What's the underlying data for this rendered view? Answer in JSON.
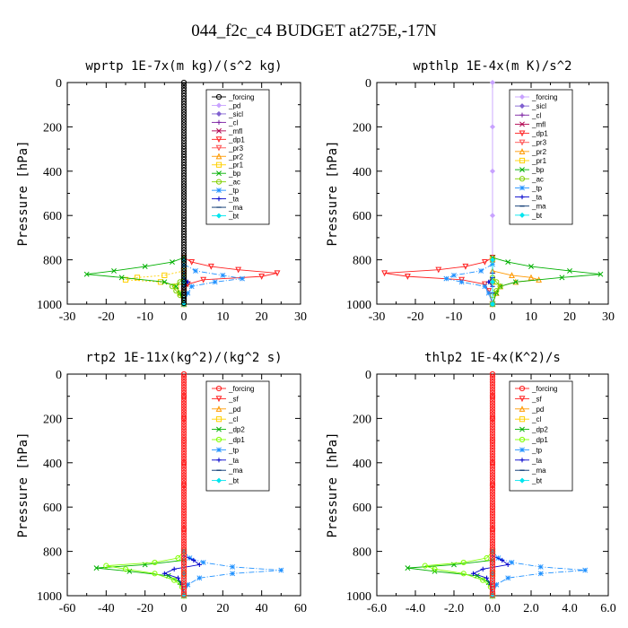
{
  "figure": {
    "title": "044_f2c_c4  BUDGET at275E,-17N"
  },
  "chart_data": [
    {
      "type": "line",
      "title": "wprtp  1E-7x(m kg)/(s^2 kg)",
      "ylabel": "Pressure [hPa]",
      "xlim": [
        -30,
        30
      ],
      "ylim": [
        1000,
        0
      ],
      "xticks": [
        "-30",
        "-20",
        "-10",
        "0",
        "10",
        "20",
        "30"
      ],
      "yticks": [
        "0",
        "200",
        "400",
        "600",
        "800",
        "1000"
      ],
      "legend_position": "top-right",
      "series": [
        {
          "name": "_forcing",
          "color": "#000000",
          "marker": "o-open",
          "y": [
            800,
            840,
            860,
            880,
            900,
            920,
            940,
            960,
            980,
            1000
          ],
          "x": [
            0,
            0,
            0,
            0,
            0,
            0,
            0,
            0,
            0,
            0
          ]
        },
        {
          "name": "_pd",
          "color": "#c8a2ff",
          "marker": "diamond",
          "y": [
            800,
            860,
            900,
            950,
            1000
          ],
          "x": [
            0,
            0,
            0,
            0,
            0
          ]
        },
        {
          "name": "_sicl",
          "color": "#8060d0",
          "marker": "diamond",
          "y": [
            800,
            860,
            900,
            950,
            1000
          ],
          "x": [
            0,
            0,
            0,
            0,
            0
          ]
        },
        {
          "name": "_cl",
          "color": "#7a1fa2",
          "marker": "plus",
          "y": [
            800,
            860,
            900,
            950,
            1000
          ],
          "x": [
            0,
            0,
            0,
            0,
            0
          ]
        },
        {
          "name": "_mfl",
          "color": "#b0004e",
          "marker": "cross",
          "y": [
            800,
            860,
            900,
            950,
            1000
          ],
          "x": [
            0,
            0,
            0,
            0,
            0
          ]
        },
        {
          "name": "_dp1",
          "color": "#ff2020",
          "marker": "triangle-down",
          "y": [
            790,
            810,
            830,
            845,
            860,
            875,
            890,
            910,
            940,
            1000
          ],
          "x": [
            0,
            2,
            7,
            14,
            24,
            20,
            5,
            1,
            0,
            0
          ]
        },
        {
          "name": "_pr3",
          "color": "#ff5050",
          "marker": "triangle-down",
          "y": [
            800,
            860,
            900,
            950,
            1000
          ],
          "x": [
            0,
            0,
            0,
            0,
            0
          ]
        },
        {
          "name": "_pr2",
          "color": "#ff9900",
          "marker": "triangle-up",
          "y": [
            800,
            860,
            900,
            950,
            1000
          ],
          "x": [
            0,
            0,
            0,
            0,
            0
          ]
        },
        {
          "name": "_pr1",
          "color": "#ffd000",
          "marker": "square",
          "y": [
            850,
            870,
            880,
            890,
            900,
            920,
            950,
            1000
          ],
          "x": [
            0,
            -5,
            -12,
            -15,
            -6,
            -2,
            -1,
            0
          ]
        },
        {
          "name": "_bp",
          "color": "#00b000",
          "marker": "cross",
          "y": [
            790,
            810,
            830,
            850,
            865,
            880,
            900,
            920,
            950,
            1000
          ],
          "x": [
            0,
            -3,
            -10,
            -18,
            -25,
            -16,
            -5,
            -2,
            -1,
            0
          ]
        },
        {
          "name": "_ac",
          "color": "#80d000",
          "marker": "o-open",
          "y": [
            880,
            900,
            920,
            940,
            960,
            1000
          ],
          "x": [
            0,
            -1,
            -3,
            -2,
            -1,
            0
          ]
        },
        {
          "name": "_tp",
          "color": "#1e90ff",
          "marker": "star",
          "y": [
            820,
            850,
            870,
            885,
            900,
            920,
            950,
            1000
          ],
          "x": [
            0,
            3,
            10,
            15,
            8,
            2,
            1,
            0
          ]
        },
        {
          "name": "_ta",
          "color": "#0000cc",
          "marker": "plus",
          "y": [
            860,
            880,
            900,
            920,
            950,
            1000
          ],
          "x": [
            0,
            0,
            1,
            0,
            0,
            0
          ]
        },
        {
          "name": "_ma",
          "color": "#002f6c",
          "marker": "dash",
          "y": [
            800,
            900,
            1000
          ],
          "x": [
            0,
            0,
            0
          ]
        },
        {
          "name": "_bt",
          "color": "#00e5ee",
          "marker": "diamond",
          "y": [
            800,
            900,
            1000
          ],
          "x": [
            0,
            0,
            0
          ]
        }
      ]
    },
    {
      "type": "line",
      "title": "wpthlp  1E-4x(m K)/s^2",
      "ylabel": "Pressure [hPa]",
      "xlim": [
        -30,
        30
      ],
      "ylim": [
        1000,
        0
      ],
      "xticks": [
        "-30",
        "-20",
        "-10",
        "0",
        "10",
        "20",
        "30"
      ],
      "yticks": [
        "0",
        "200",
        "400",
        "600",
        "800",
        "1000"
      ],
      "legend_position": "top-right",
      "series": [
        {
          "name": "_forcing",
          "color": "#c8a2ff",
          "marker": "diamond",
          "y": [
            0,
            200,
            400,
            600,
            800,
            900,
            1000
          ],
          "x": [
            0,
            0,
            0,
            0,
            0,
            0,
            0
          ]
        },
        {
          "name": "_sicl",
          "color": "#8060d0",
          "marker": "diamond",
          "y": [
            800,
            900,
            1000
          ],
          "x": [
            0,
            0,
            0
          ]
        },
        {
          "name": "_cl",
          "color": "#7a1fa2",
          "marker": "plus",
          "y": [
            800,
            900,
            1000
          ],
          "x": [
            0,
            0,
            0
          ]
        },
        {
          "name": "_mfl",
          "color": "#b0004e",
          "marker": "cross",
          "y": [
            800,
            900,
            1000
          ],
          "x": [
            0,
            0,
            0
          ]
        },
        {
          "name": "_dp1",
          "color": "#ff2020",
          "marker": "triangle-down",
          "y": [
            790,
            810,
            830,
            845,
            860,
            875,
            890,
            910,
            940,
            1000
          ],
          "x": [
            0,
            -2,
            -7,
            -14,
            -28,
            -22,
            -8,
            -2,
            -1,
            0
          ]
        },
        {
          "name": "_pr3",
          "color": "#ff5050",
          "marker": "triangle-down",
          "y": [
            800,
            900,
            1000
          ],
          "x": [
            0,
            0,
            0
          ]
        },
        {
          "name": "_pr2",
          "color": "#ff9900",
          "marker": "triangle-up",
          "y": [
            850,
            870,
            880,
            890,
            900,
            920,
            950,
            1000
          ],
          "x": [
            0,
            5,
            10,
            12,
            6,
            2,
            1,
            0
          ]
        },
        {
          "name": "_pr1",
          "color": "#ffd000",
          "marker": "square",
          "y": [
            800,
            900,
            1000
          ],
          "x": [
            0,
            0,
            0
          ]
        },
        {
          "name": "_bp",
          "color": "#00b000",
          "marker": "cross",
          "y": [
            790,
            810,
            830,
            850,
            865,
            880,
            900,
            920,
            950,
            1000
          ],
          "x": [
            0,
            4,
            10,
            20,
            28,
            18,
            6,
            2,
            1,
            0
          ]
        },
        {
          "name": "_ac",
          "color": "#80d000",
          "marker": "o-open",
          "y": [
            880,
            900,
            920,
            940,
            960,
            1000
          ],
          "x": [
            0,
            1,
            2,
            1,
            0,
            0
          ]
        },
        {
          "name": "_tp",
          "color": "#1e90ff",
          "marker": "star",
          "y": [
            820,
            850,
            870,
            885,
            900,
            920,
            950,
            1000
          ],
          "x": [
            0,
            -3,
            -10,
            -12,
            -8,
            -2,
            -1,
            0
          ]
        },
        {
          "name": "_ta",
          "color": "#0000cc",
          "marker": "plus",
          "y": [
            860,
            880,
            900,
            920,
            950,
            1000
          ],
          "x": [
            0,
            0,
            -1,
            0,
            0,
            0
          ]
        },
        {
          "name": "_ma",
          "color": "#002f6c",
          "marker": "dash",
          "y": [
            800,
            900,
            1000
          ],
          "x": [
            0,
            0,
            0
          ]
        },
        {
          "name": "_bt",
          "color": "#00e5ee",
          "marker": "diamond",
          "y": [
            800,
            900,
            1000
          ],
          "x": [
            0,
            0,
            0
          ]
        }
      ]
    },
    {
      "type": "line",
      "title": "rtp2  1E-11x(kg^2)/(kg^2 s)",
      "ylabel": "Pressure [hPa]",
      "xlim": [
        -60,
        60
      ],
      "ylim": [
        1000,
        0
      ],
      "xticks": [
        "-60",
        "-40",
        "-20",
        "0",
        "20",
        "40",
        "60"
      ],
      "yticks": [
        "0",
        "200",
        "400",
        "600",
        "800",
        "1000"
      ],
      "legend_position": "top-right",
      "series": [
        {
          "name": "_forcing",
          "color": "#ff2020",
          "marker": "o-open",
          "y": [
            0,
            100,
            200,
            300,
            400,
            500,
            600,
            700,
            800,
            850,
            900,
            950,
            1000
          ],
          "x": [
            0,
            0,
            0,
            0,
            0,
            0,
            0,
            0,
            0,
            0,
            0,
            0,
            0
          ]
        },
        {
          "name": "_sf",
          "color": "#ff2020",
          "marker": "triangle-down",
          "y": [
            800,
            900,
            1000
          ],
          "x": [
            0,
            0,
            0
          ]
        },
        {
          "name": "_pd",
          "color": "#ff9900",
          "marker": "triangle-up",
          "y": [
            800,
            900,
            1000
          ],
          "x": [
            0,
            0,
            0
          ]
        },
        {
          "name": "_cl",
          "color": "#ffd000",
          "marker": "square",
          "y": [
            800,
            900,
            1000
          ],
          "x": [
            0,
            0,
            0
          ]
        },
        {
          "name": "_dp2",
          "color": "#00b000",
          "marker": "cross",
          "y": [
            840,
            860,
            875,
            890,
            910,
            940,
            1000
          ],
          "x": [
            0,
            -20,
            -45,
            -28,
            -8,
            -2,
            0
          ]
        },
        {
          "name": "_dp1",
          "color": "#80ff00",
          "marker": "o-open",
          "y": [
            800,
            830,
            850,
            865,
            880,
            900,
            930,
            960,
            1000
          ],
          "x": [
            0,
            -3,
            -15,
            -40,
            -30,
            -15,
            -5,
            -1,
            0
          ]
        },
        {
          "name": "_tp",
          "color": "#1e90ff",
          "marker": "star",
          "y": [
            800,
            830,
            850,
            870,
            885,
            900,
            920,
            950,
            1000
          ],
          "x": [
            0,
            3,
            10,
            25,
            50,
            25,
            8,
            2,
            0
          ]
        },
        {
          "name": "_ta",
          "color": "#0000cc",
          "marker": "plus",
          "y": [
            820,
            840,
            860,
            880,
            900,
            920,
            950,
            1000
          ],
          "x": [
            0,
            5,
            8,
            -5,
            -10,
            -3,
            -1,
            0
          ]
        },
        {
          "name": "_ma",
          "color": "#002f6c",
          "marker": "dash",
          "y": [
            800,
            900,
            1000
          ],
          "x": [
            0,
            0,
            0
          ]
        },
        {
          "name": "_bt",
          "color": "#00e5ee",
          "marker": "diamond",
          "y": [
            800,
            900,
            1000
          ],
          "x": [
            0,
            0,
            0
          ]
        }
      ]
    },
    {
      "type": "line",
      "title": "thlp2  1E-4x(K^2)/s",
      "ylabel": "Pressure [hPa]",
      "xlim": [
        -6,
        6
      ],
      "ylim": [
        1000,
        0
      ],
      "xticks": [
        "-6.0",
        "-4.0",
        "-2.0",
        "0.0",
        "2.0",
        "4.0",
        "6.0"
      ],
      "yticks": [
        "0",
        "200",
        "400",
        "600",
        "800",
        "1000"
      ],
      "legend_position": "top-right",
      "series": [
        {
          "name": "_forcing",
          "color": "#ff2020",
          "marker": "o-open",
          "y": [
            0,
            100,
            200,
            300,
            400,
            500,
            600,
            700,
            800,
            850,
            900,
            950,
            1000
          ],
          "x": [
            0,
            0,
            0,
            0,
            0,
            0,
            0,
            0,
            0,
            0,
            0,
            0,
            0
          ]
        },
        {
          "name": "_sf",
          "color": "#ff2020",
          "marker": "triangle-down",
          "y": [
            800,
            900,
            1000
          ],
          "x": [
            0,
            0,
            0
          ]
        },
        {
          "name": "_pd",
          "color": "#ff9900",
          "marker": "triangle-up",
          "y": [
            800,
            900,
            1000
          ],
          "x": [
            0,
            0,
            0
          ]
        },
        {
          "name": "_cl",
          "color": "#ffd000",
          "marker": "square",
          "y": [
            800,
            900,
            1000
          ],
          "x": [
            0,
            0,
            0
          ]
        },
        {
          "name": "_dp2",
          "color": "#00b000",
          "marker": "cross",
          "y": [
            840,
            860,
            875,
            890,
            910,
            940,
            1000
          ],
          "x": [
            0,
            -2,
            -4.4,
            -3,
            -0.8,
            -0.2,
            0
          ]
        },
        {
          "name": "_dp1",
          "color": "#80ff00",
          "marker": "o-open",
          "y": [
            800,
            830,
            850,
            865,
            880,
            900,
            930,
            960,
            1000
          ],
          "x": [
            0,
            -0.3,
            -1.5,
            -3.5,
            -3,
            -1.5,
            -0.5,
            -0.1,
            0
          ]
        },
        {
          "name": "_tp",
          "color": "#1e90ff",
          "marker": "star",
          "y": [
            800,
            830,
            850,
            870,
            885,
            900,
            920,
            950,
            1000
          ],
          "x": [
            0,
            0.3,
            1,
            2.5,
            4.8,
            2.5,
            0.8,
            0.2,
            0
          ]
        },
        {
          "name": "_ta",
          "color": "#0000cc",
          "marker": "plus",
          "y": [
            820,
            840,
            860,
            880,
            900,
            920,
            950,
            1000
          ],
          "x": [
            0,
            0.5,
            0.8,
            -0.5,
            -1,
            -0.3,
            -0.1,
            0
          ]
        },
        {
          "name": "_ma",
          "color": "#002f6c",
          "marker": "dash",
          "y": [
            800,
            900,
            1000
          ],
          "x": [
            0,
            0,
            0
          ]
        },
        {
          "name": "_bt",
          "color": "#00e5ee",
          "marker": "diamond",
          "y": [
            800,
            900,
            1000
          ],
          "x": [
            0,
            0,
            0
          ]
        }
      ]
    }
  ]
}
